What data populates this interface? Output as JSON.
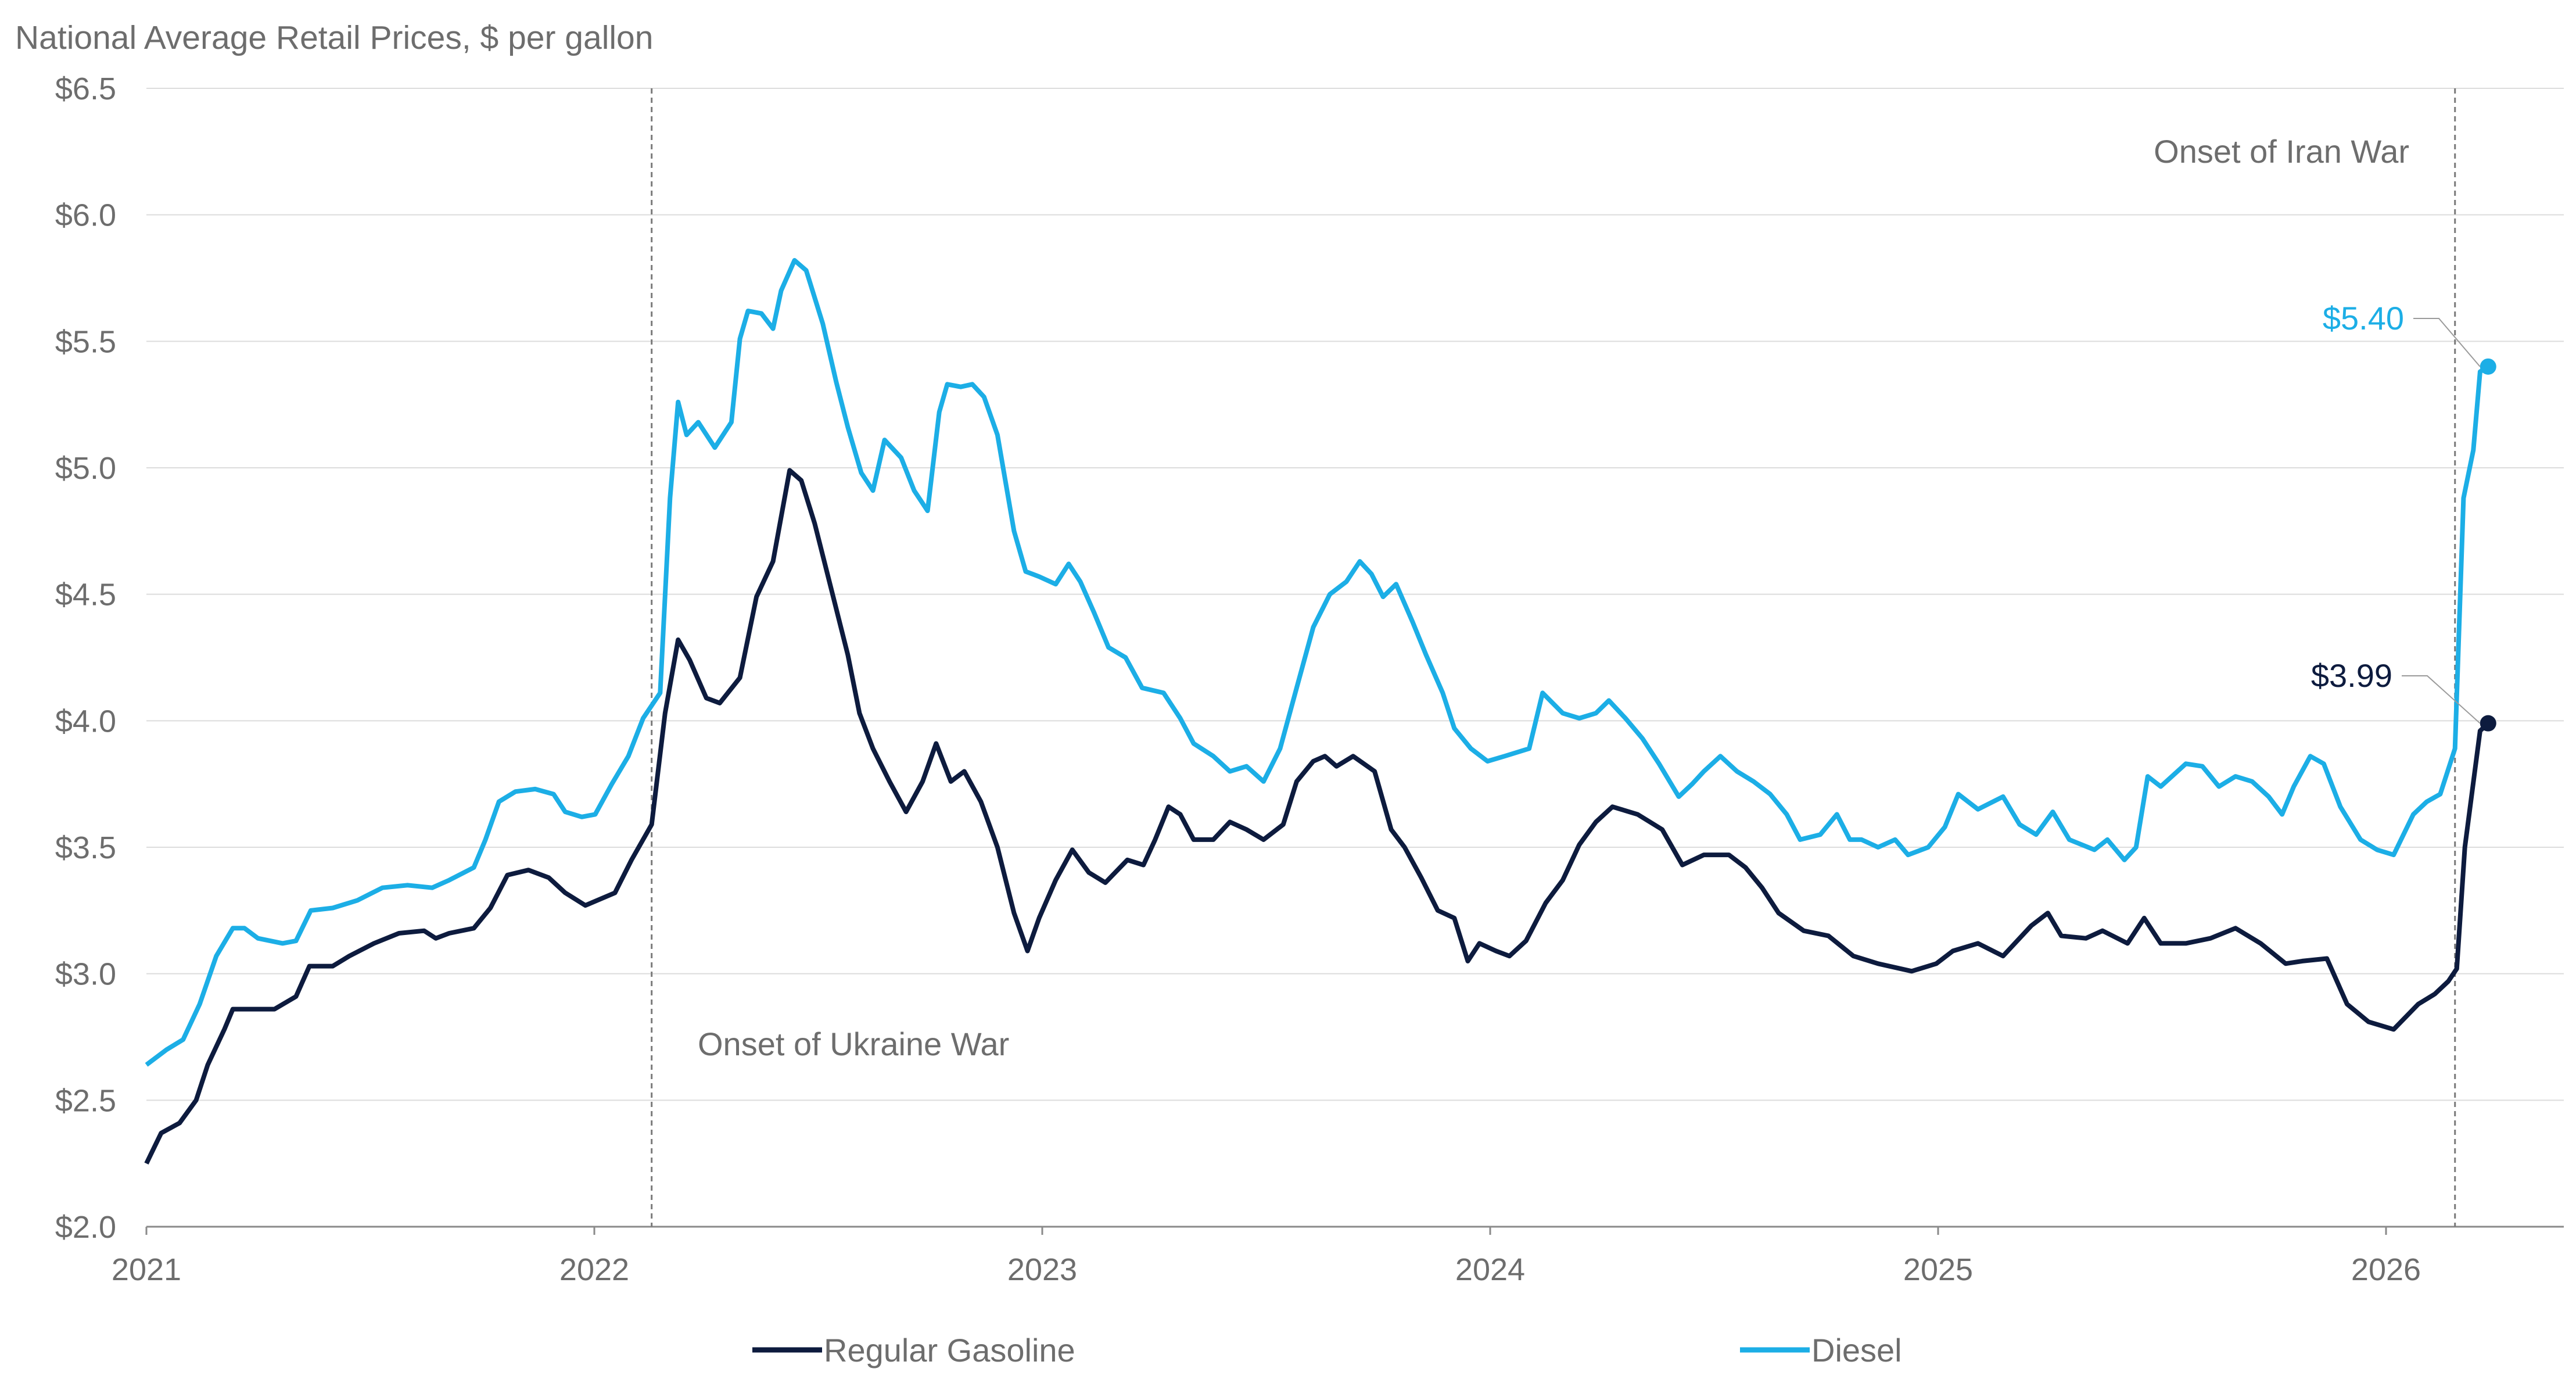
{
  "chart_data": {
    "type": "line",
    "title": "National Average Retail Prices, $ per gallon",
    "xlabel": "",
    "ylabel": "",
    "xlim": [
      2021,
      2026.42
    ],
    "ylim": [
      2.0,
      6.5
    ],
    "y_ticks": [
      2.0,
      2.5,
      3.0,
      3.5,
      4.0,
      4.5,
      5.0,
      5.5,
      6.0,
      6.5
    ],
    "y_tick_labels": [
      "$2.0",
      "$2.5",
      "$3.0",
      "$3.5",
      "$4.0",
      "$4.5",
      "$5.0",
      "$5.5",
      "$6.0",
      "$6.5"
    ],
    "x_ticks": [
      2021,
      2022,
      2023,
      2024,
      2025,
      2026
    ],
    "x_tick_labels": [
      "2021",
      "2022",
      "2023",
      "2024",
      "2025",
      "2026"
    ],
    "grid": true,
    "legend_position": "bottom",
    "colors": {
      "gasoline": "#0d1b3e",
      "diesel": "#1caee6"
    },
    "annotations": [
      {
        "text": "Onset of Ukraine War",
        "x": 2022.128
      },
      {
        "text": "Onset of Iran War",
        "x": 2026.154
      }
    ],
    "end_labels": {
      "diesel": "$5.40",
      "gasoline": "$3.99"
    },
    "series": [
      {
        "name": "Regular Gasoline",
        "key": "gasoline",
        "points": [
          [
            2021.0,
            2.25
          ],
          [
            2021.033,
            2.37
          ],
          [
            2021.074,
            2.41
          ],
          [
            2021.111,
            2.5
          ],
          [
            2021.137,
            2.64
          ],
          [
            2021.174,
            2.78
          ],
          [
            2021.193,
            2.86
          ],
          [
            2021.23,
            2.86
          ],
          [
            2021.286,
            2.86
          ],
          [
            2021.334,
            2.91
          ],
          [
            2021.364,
            3.03
          ],
          [
            2021.416,
            3.03
          ],
          [
            2021.453,
            3.07
          ],
          [
            2021.508,
            3.12
          ],
          [
            2021.564,
            3.16
          ],
          [
            2021.62,
            3.17
          ],
          [
            2021.646,
            3.14
          ],
          [
            2021.676,
            3.16
          ],
          [
            2021.731,
            3.18
          ],
          [
            2021.768,
            3.26
          ],
          [
            2021.806,
            3.39
          ],
          [
            2021.853,
            3.41
          ],
          [
            2021.898,
            3.38
          ],
          [
            2021.935,
            3.32
          ],
          [
            2021.98,
            3.27
          ],
          [
            2022.046,
            3.32
          ],
          [
            2022.083,
            3.45
          ],
          [
            2022.128,
            3.59
          ],
          [
            2022.158,
            4.03
          ],
          [
            2022.187,
            4.32
          ],
          [
            2022.213,
            4.24
          ],
          [
            2022.25,
            4.09
          ],
          [
            2022.28,
            4.07
          ],
          [
            2022.325,
            4.17
          ],
          [
            2022.362,
            4.49
          ],
          [
            2022.399,
            4.63
          ],
          [
            2022.436,
            4.99
          ],
          [
            2022.462,
            4.95
          ],
          [
            2022.492,
            4.78
          ],
          [
            2022.529,
            4.52
          ],
          [
            2022.566,
            4.26
          ],
          [
            2022.592,
            4.03
          ],
          [
            2022.622,
            3.89
          ],
          [
            2022.659,
            3.76
          ],
          [
            2022.696,
            3.64
          ],
          [
            2022.733,
            3.76
          ],
          [
            2022.763,
            3.91
          ],
          [
            2022.796,
            3.76
          ],
          [
            2022.826,
            3.8
          ],
          [
            2022.863,
            3.68
          ],
          [
            2022.9,
            3.5
          ],
          [
            2022.937,
            3.24
          ],
          [
            2022.967,
            3.09
          ],
          [
            2022.993,
            3.22
          ],
          [
            2023.03,
            3.37
          ],
          [
            2023.067,
            3.49
          ],
          [
            2023.104,
            3.4
          ],
          [
            2023.141,
            3.36
          ],
          [
            2023.19,
            3.45
          ],
          [
            2023.226,
            3.43
          ],
          [
            2023.252,
            3.53
          ],
          [
            2023.282,
            3.66
          ],
          [
            2023.308,
            3.63
          ],
          [
            2023.338,
            3.53
          ],
          [
            2023.382,
            3.53
          ],
          [
            2023.419,
            3.6
          ],
          [
            2023.456,
            3.57
          ],
          [
            2023.494,
            3.53
          ],
          [
            2023.538,
            3.59
          ],
          [
            2023.568,
            3.76
          ],
          [
            2023.605,
            3.84
          ],
          [
            2023.631,
            3.86
          ],
          [
            2023.657,
            3.82
          ],
          [
            2023.694,
            3.86
          ],
          [
            2023.742,
            3.8
          ],
          [
            2023.779,
            3.57
          ],
          [
            2023.809,
            3.5
          ],
          [
            2023.846,
            3.38
          ],
          [
            2023.883,
            3.25
          ],
          [
            2023.92,
            3.22
          ],
          [
            2023.95,
            3.05
          ],
          [
            2023.976,
            3.12
          ],
          [
            2024.013,
            3.09
          ],
          [
            2024.043,
            3.07
          ],
          [
            2024.08,
            3.13
          ],
          [
            2024.124,
            3.28
          ],
          [
            2024.162,
            3.37
          ],
          [
            2024.199,
            3.51
          ],
          [
            2024.236,
            3.6
          ],
          [
            2024.273,
            3.66
          ],
          [
            2024.329,
            3.63
          ],
          [
            2024.384,
            3.57
          ],
          [
            2024.429,
            3.43
          ],
          [
            2024.477,
            3.47
          ],
          [
            2024.533,
            3.47
          ],
          [
            2024.57,
            3.42
          ],
          [
            2024.607,
            3.34
          ],
          [
            2024.644,
            3.24
          ],
          [
            2024.7,
            3.17
          ],
          [
            2024.755,
            3.15
          ],
          [
            2024.811,
            3.07
          ],
          [
            2024.866,
            3.04
          ],
          [
            2024.941,
            3.01
          ],
          [
            2024.996,
            3.04
          ],
          [
            2025.033,
            3.09
          ],
          [
            2025.089,
            3.12
          ],
          [
            2025.145,
            3.07
          ],
          [
            2025.208,
            3.19
          ],
          [
            2025.245,
            3.24
          ],
          [
            2025.275,
            3.15
          ],
          [
            2025.33,
            3.14
          ],
          [
            2025.367,
            3.17
          ],
          [
            2025.423,
            3.12
          ],
          [
            2025.46,
            3.22
          ],
          [
            2025.497,
            3.12
          ],
          [
            2025.553,
            3.12
          ],
          [
            2025.608,
            3.14
          ],
          [
            2025.664,
            3.18
          ],
          [
            2025.72,
            3.12
          ],
          [
            2025.776,
            3.04
          ],
          [
            2025.813,
            3.05
          ],
          [
            2025.868,
            3.06
          ],
          [
            2025.913,
            2.88
          ],
          [
            2025.961,
            2.81
          ],
          [
            2026.017,
            2.78
          ],
          [
            2026.072,
            2.88
          ],
          [
            2026.109,
            2.92
          ],
          [
            2026.139,
            2.97
          ],
          [
            2026.158,
            3.02
          ],
          [
            2026.176,
            3.5
          ],
          [
            2026.21,
            3.96
          ],
          [
            2026.228,
            3.99
          ]
        ]
      },
      {
        "name": "Diesel",
        "key": "diesel",
        "points": [
          [
            2021.0,
            2.64
          ],
          [
            2021.045,
            2.7
          ],
          [
            2021.082,
            2.74
          ],
          [
            2021.119,
            2.88
          ],
          [
            2021.156,
            3.07
          ],
          [
            2021.193,
            3.18
          ],
          [
            2021.219,
            3.18
          ],
          [
            2021.249,
            3.14
          ],
          [
            2021.304,
            3.12
          ],
          [
            2021.334,
            3.13
          ],
          [
            2021.367,
            3.25
          ],
          [
            2021.416,
            3.26
          ],
          [
            2021.471,
            3.29
          ],
          [
            2021.527,
            3.34
          ],
          [
            2021.583,
            3.35
          ],
          [
            2021.638,
            3.34
          ],
          [
            2021.676,
            3.37
          ],
          [
            2021.731,
            3.42
          ],
          [
            2021.757,
            3.53
          ],
          [
            2021.787,
            3.68
          ],
          [
            2021.824,
            3.72
          ],
          [
            2021.868,
            3.73
          ],
          [
            2021.909,
            3.71
          ],
          [
            2021.935,
            3.64
          ],
          [
            2021.972,
            3.62
          ],
          [
            2022.002,
            3.63
          ],
          [
            2022.039,
            3.75
          ],
          [
            2022.076,
            3.86
          ],
          [
            2022.109,
            4.01
          ],
          [
            2022.147,
            4.11
          ],
          [
            2022.169,
            4.88
          ],
          [
            2022.187,
            5.26
          ],
          [
            2022.206,
            5.13
          ],
          [
            2022.232,
            5.18
          ],
          [
            2022.269,
            5.08
          ],
          [
            2022.306,
            5.18
          ],
          [
            2022.325,
            5.51
          ],
          [
            2022.343,
            5.62
          ],
          [
            2022.373,
            5.61
          ],
          [
            2022.399,
            5.55
          ],
          [
            2022.417,
            5.7
          ],
          [
            2022.447,
            5.82
          ],
          [
            2022.473,
            5.78
          ],
          [
            2022.51,
            5.57
          ],
          [
            2022.54,
            5.34
          ],
          [
            2022.566,
            5.16
          ],
          [
            2022.596,
            4.98
          ],
          [
            2022.622,
            4.91
          ],
          [
            2022.648,
            5.11
          ],
          [
            2022.685,
            5.04
          ],
          [
            2022.714,
            4.91
          ],
          [
            2022.744,
            4.83
          ],
          [
            2022.77,
            5.22
          ],
          [
            2022.788,
            5.33
          ],
          [
            2022.818,
            5.32
          ],
          [
            2022.844,
            5.33
          ],
          [
            2022.87,
            5.28
          ],
          [
            2022.9,
            5.13
          ],
          [
            2022.937,
            4.75
          ],
          [
            2022.963,
            4.59
          ],
          [
            2022.993,
            4.57
          ],
          [
            2023.03,
            4.54
          ],
          [
            2023.059,
            4.62
          ],
          [
            2023.085,
            4.55
          ],
          [
            2023.115,
            4.43
          ],
          [
            2023.148,
            4.29
          ],
          [
            2023.186,
            4.25
          ],
          [
            2023.223,
            4.13
          ],
          [
            2023.271,
            4.11
          ],
          [
            2023.308,
            4.01
          ],
          [
            2023.338,
            3.91
          ],
          [
            2023.382,
            3.86
          ],
          [
            2023.419,
            3.8
          ],
          [
            2023.456,
            3.82
          ],
          [
            2023.494,
            3.76
          ],
          [
            2023.531,
            3.89
          ],
          [
            2023.568,
            4.13
          ],
          [
            2023.605,
            4.37
          ],
          [
            2023.642,
            4.5
          ],
          [
            2023.679,
            4.55
          ],
          [
            2023.709,
            4.63
          ],
          [
            2023.735,
            4.58
          ],
          [
            2023.761,
            4.49
          ],
          [
            2023.79,
            4.54
          ],
          [
            2023.827,
            4.39
          ],
          [
            2023.857,
            4.26
          ],
          [
            2023.894,
            4.11
          ],
          [
            2023.92,
            3.97
          ],
          [
            2023.957,
            3.89
          ],
          [
            2023.994,
            3.84
          ],
          [
            2024.032,
            3.86
          ],
          [
            2024.087,
            3.89
          ],
          [
            2024.117,
            4.11
          ],
          [
            2024.162,
            4.03
          ],
          [
            2024.199,
            4.01
          ],
          [
            2024.236,
            4.03
          ],
          [
            2024.265,
            4.08
          ],
          [
            2024.302,
            4.01
          ],
          [
            2024.34,
            3.93
          ],
          [
            2024.377,
            3.83
          ],
          [
            2024.421,
            3.7
          ],
          [
            2024.451,
            3.75
          ],
          [
            2024.477,
            3.8
          ],
          [
            2024.514,
            3.86
          ],
          [
            2024.551,
            3.8
          ],
          [
            2024.588,
            3.76
          ],
          [
            2024.625,
            3.71
          ],
          [
            2024.662,
            3.63
          ],
          [
            2024.692,
            3.53
          ],
          [
            2024.737,
            3.55
          ],
          [
            2024.774,
            3.63
          ],
          [
            2024.803,
            3.53
          ],
          [
            2024.829,
            3.53
          ],
          [
            2024.866,
            3.5
          ],
          [
            2024.904,
            3.53
          ],
          [
            2024.933,
            3.47
          ],
          [
            2024.978,
            3.5
          ],
          [
            2025.015,
            3.58
          ],
          [
            2025.045,
            3.71
          ],
          [
            2025.089,
            3.65
          ],
          [
            2025.145,
            3.7
          ],
          [
            2025.182,
            3.59
          ],
          [
            2025.219,
            3.55
          ],
          [
            2025.256,
            3.64
          ],
          [
            2025.293,
            3.53
          ],
          [
            2025.349,
            3.49
          ],
          [
            2025.378,
            3.53
          ],
          [
            2025.416,
            3.45
          ],
          [
            2025.442,
            3.5
          ],
          [
            2025.468,
            3.78
          ],
          [
            2025.497,
            3.74
          ],
          [
            2025.553,
            3.83
          ],
          [
            2025.59,
            3.82
          ],
          [
            2025.627,
            3.74
          ],
          [
            2025.664,
            3.78
          ],
          [
            2025.701,
            3.76
          ],
          [
            2025.738,
            3.7
          ],
          [
            2025.768,
            3.63
          ],
          [
            2025.794,
            3.74
          ],
          [
            2025.831,
            3.86
          ],
          [
            2025.861,
            3.83
          ],
          [
            2025.898,
            3.66
          ],
          [
            2025.943,
            3.53
          ],
          [
            2025.98,
            3.49
          ],
          [
            2026.017,
            3.47
          ],
          [
            2026.061,
            3.63
          ],
          [
            2026.091,
            3.68
          ],
          [
            2026.121,
            3.71
          ],
          [
            2026.154,
            3.89
          ],
          [
            2026.173,
            4.88
          ],
          [
            2026.195,
            5.07
          ],
          [
            2026.21,
            5.38
          ],
          [
            2026.228,
            5.4
          ]
        ]
      }
    ]
  }
}
